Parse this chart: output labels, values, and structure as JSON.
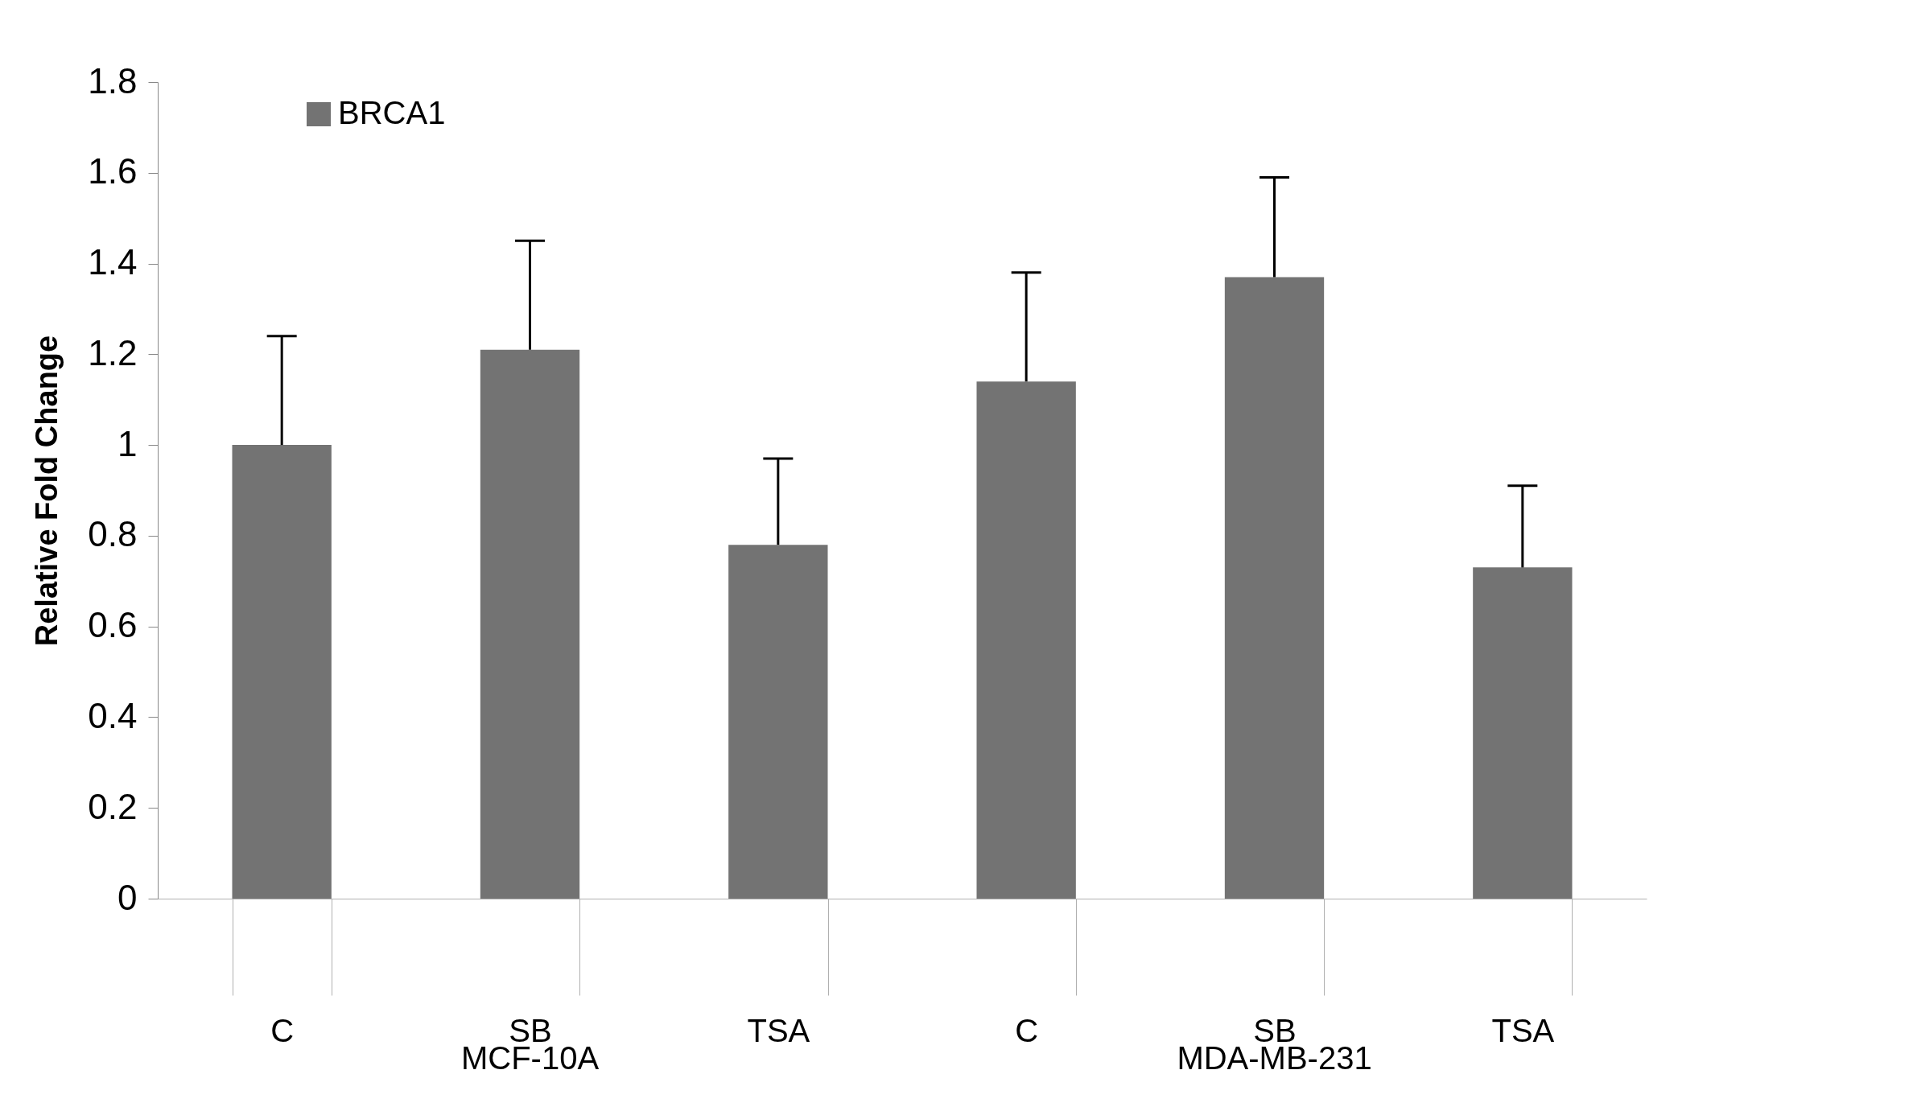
{
  "chart_data": {
    "type": "bar",
    "ylabel": "Relative Fold Change",
    "categories": [
      "C",
      "SB",
      "TSA",
      "C",
      "SB",
      "TSA"
    ],
    "series": [
      {
        "name": "BRCA1",
        "color": "#737373",
        "values": [
          1.0,
          1.21,
          0.78,
          1.14,
          1.37,
          0.73
        ],
        "errors": [
          [
            1.0,
            1.24
          ],
          [
            1.21,
            1.45
          ],
          [
            0.78,
            0.97
          ],
          [
            1.14,
            1.38
          ],
          [
            1.37,
            1.59
          ],
          [
            0.73,
            0.91
          ]
        ]
      }
    ],
    "annotations": [
      "MCF-10A",
      "MDA-MB-231"
    ],
    "ylim": [
      0,
      1.8
    ],
    "yticks": [
      0,
      0.2,
      0.4,
      0.6,
      0.8,
      1,
      1.2,
      1.4,
      1.6,
      1.8
    ],
    "legend": "top left",
    "grid": false
  }
}
